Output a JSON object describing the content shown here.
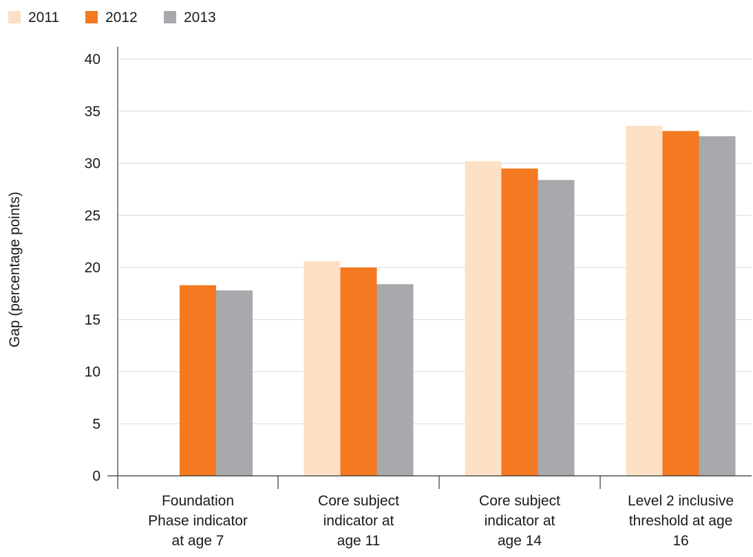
{
  "chart_data": {
    "type": "bar",
    "title": "",
    "xlabel": "",
    "ylabel": "Gap (percentage points)",
    "ylim": [
      0,
      40
    ],
    "yticks": [
      "0",
      "5",
      "10",
      "15",
      "20",
      "25",
      "30",
      "35",
      "40"
    ],
    "grid": true,
    "legend_position": "top-left",
    "categories": [
      [
        "Foundation",
        "Phase indicator",
        "at age 7"
      ],
      [
        "Core subject",
        "indicator at",
        "age 11"
      ],
      [
        "Core subject",
        "indicator at",
        "age 14"
      ],
      [
        "Level 2 inclusive",
        "threshold at age",
        "16"
      ]
    ],
    "series": [
      {
        "name": "2011",
        "color": "#fde0c5",
        "values": [
          null,
          20.6,
          30.2,
          33.6
        ]
      },
      {
        "name": "2012",
        "color": "#f47920",
        "values": [
          18.3,
          20.0,
          29.5,
          33.1
        ]
      },
      {
        "name": "2013",
        "color": "#a7a9ac",
        "values": [
          17.8,
          18.4,
          28.4,
          32.6
        ]
      }
    ]
  }
}
